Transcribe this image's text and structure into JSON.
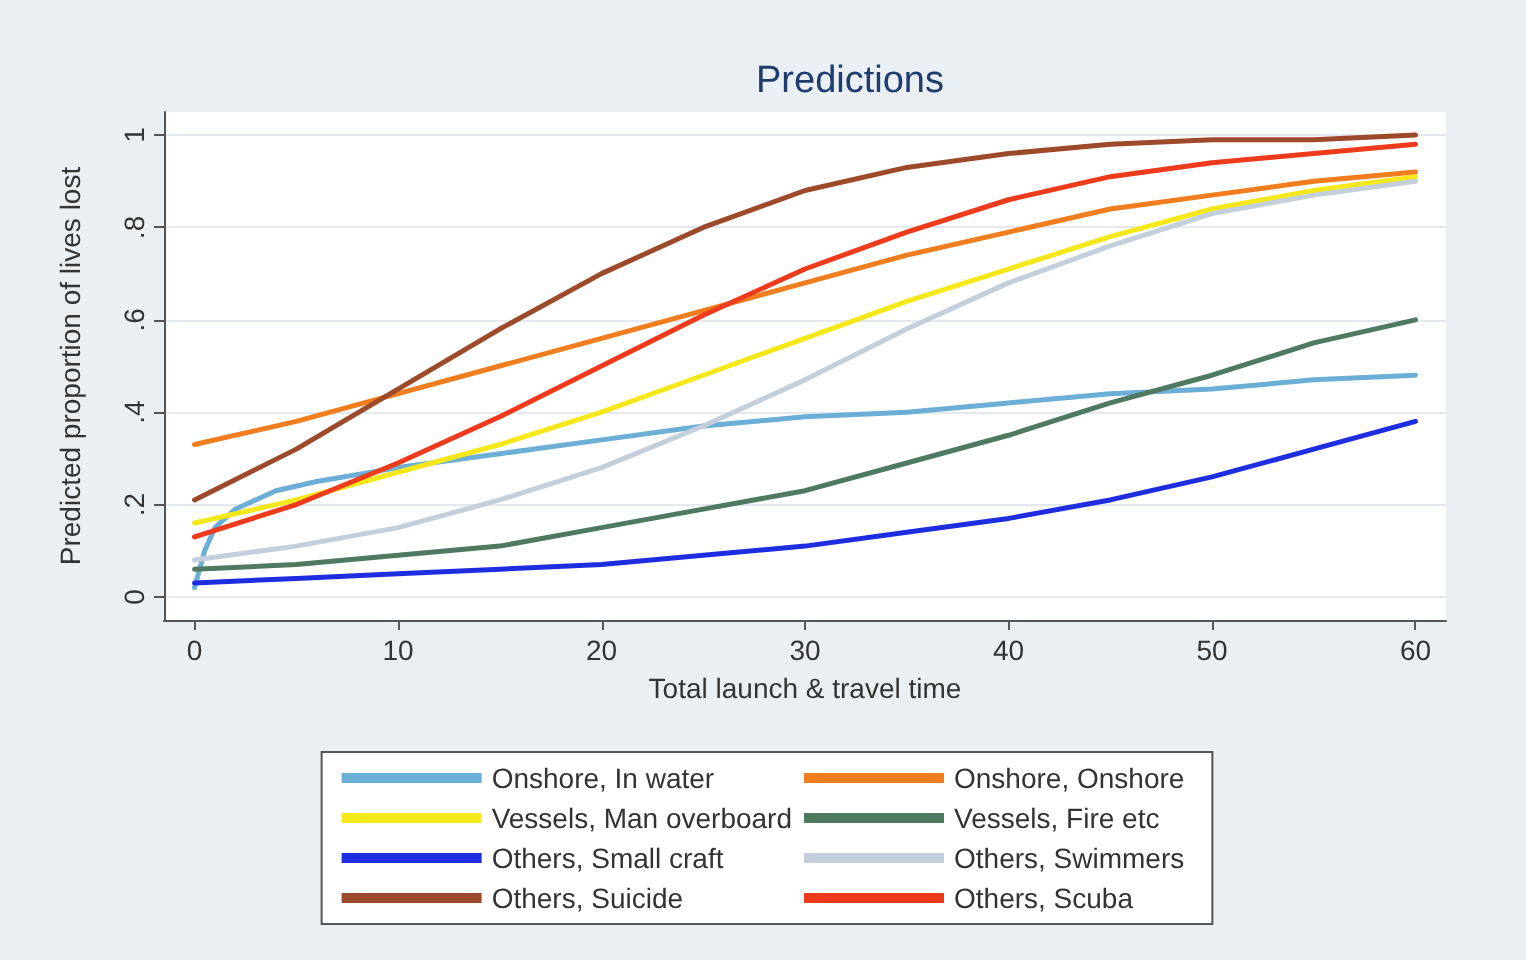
{
  "chart_data": {
    "type": "line",
    "title": "Predictions",
    "xlabel": "Total launch & travel time",
    "ylabel": "Predicted proportion of lives lost",
    "x": [
      0,
      5,
      10,
      15,
      20,
      25,
      30,
      35,
      40,
      45,
      50,
      55,
      60
    ],
    "xlim": [
      -1.5,
      61.5
    ],
    "xticks": [
      0,
      10,
      20,
      30,
      40,
      50,
      60
    ],
    "ylim": [
      -0.05,
      1.05
    ],
    "yticks": [
      0,
      {
        "value": 0.2,
        "label": ".2"
      },
      {
        "value": 0.4,
        "label": ".4"
      },
      {
        "value": 0.6,
        "label": ".6"
      },
      {
        "value": 0.8,
        "label": ".8"
      },
      1
    ],
    "grid": "y",
    "legend": "bottom",
    "marker": "none",
    "line_style": "solid",
    "series": [
      {
        "name": "Onshore, In water",
        "color": "#6baed6",
        "x": [
          0,
          0.5,
          1,
          2,
          4,
          6,
          10,
          15,
          20,
          25,
          30,
          35,
          40,
          45,
          50,
          55,
          60
        ],
        "values": [
          0.02,
          0.1,
          0.15,
          0.19,
          0.23,
          0.25,
          0.28,
          0.31,
          0.34,
          0.37,
          0.39,
          0.4,
          0.42,
          0.44,
          0.45,
          0.47,
          0.48
        ]
      },
      {
        "name": "Onshore, Onshore",
        "color": "#f07d1e",
        "values": [
          0.33,
          0.38,
          0.44,
          0.5,
          0.56,
          0.62,
          0.68,
          0.74,
          0.79,
          0.84,
          0.87,
          0.9,
          0.92
        ]
      },
      {
        "name": "Vessels, Man overboard",
        "color": "#f5e81a",
        "values": [
          0.16,
          0.21,
          0.27,
          0.33,
          0.4,
          0.48,
          0.56,
          0.64,
          0.71,
          0.78,
          0.84,
          0.88,
          0.91
        ]
      },
      {
        "name": "Vessels, Fire etc",
        "color": "#4e7a62",
        "values": [
          0.06,
          0.07,
          0.09,
          0.11,
          0.15,
          0.19,
          0.23,
          0.29,
          0.35,
          0.42,
          0.48,
          0.55,
          0.6
        ]
      },
      {
        "name": "Others, Small craft",
        "color": "#1f2de0",
        "values": [
          0.03,
          0.04,
          0.05,
          0.06,
          0.07,
          0.09,
          0.11,
          0.14,
          0.17,
          0.21,
          0.26,
          0.32,
          0.38
        ]
      },
      {
        "name": "Others, Swimmers",
        "color": "#c4cfdc",
        "values": [
          0.08,
          0.11,
          0.15,
          0.21,
          0.28,
          0.37,
          0.47,
          0.58,
          0.68,
          0.76,
          0.83,
          0.87,
          0.9
        ]
      },
      {
        "name": "Others, Suicide",
        "color": "#9c4a2a",
        "values": [
          0.21,
          0.32,
          0.45,
          0.58,
          0.7,
          0.8,
          0.88,
          0.93,
          0.96,
          0.98,
          0.99,
          0.99,
          1.0
        ]
      },
      {
        "name": "Others, Scuba",
        "color": "#ee3b1c",
        "values": [
          0.13,
          0.2,
          0.29,
          0.39,
          0.5,
          0.61,
          0.71,
          0.79,
          0.86,
          0.91,
          0.94,
          0.96,
          0.98
        ]
      }
    ]
  }
}
